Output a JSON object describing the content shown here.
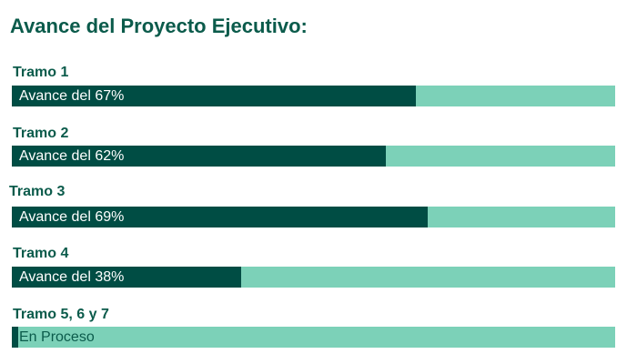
{
  "title": "Avance del Proyecto Ejecutivo:",
  "colors": {
    "title": "#0b5b4b",
    "fill": "#004d44",
    "track": "#7cd1b8"
  },
  "chart_data": {
    "type": "bar",
    "orientation": "horizontal",
    "title": "Avance del Proyecto Ejecutivo:",
    "categories": [
      "Tramo 1",
      "Tramo 2",
      "Tramo 3",
      "Tramo 4",
      "Tramo 5, 6 y 7"
    ],
    "values": [
      67,
      62,
      69,
      38,
      1
    ],
    "xlim": [
      0,
      100
    ],
    "data_labels": [
      "Avance del 67%",
      "Avance del 62%",
      "Avance del 69%",
      "Avance del 38%",
      "En Proceso"
    ],
    "grid": false
  }
}
